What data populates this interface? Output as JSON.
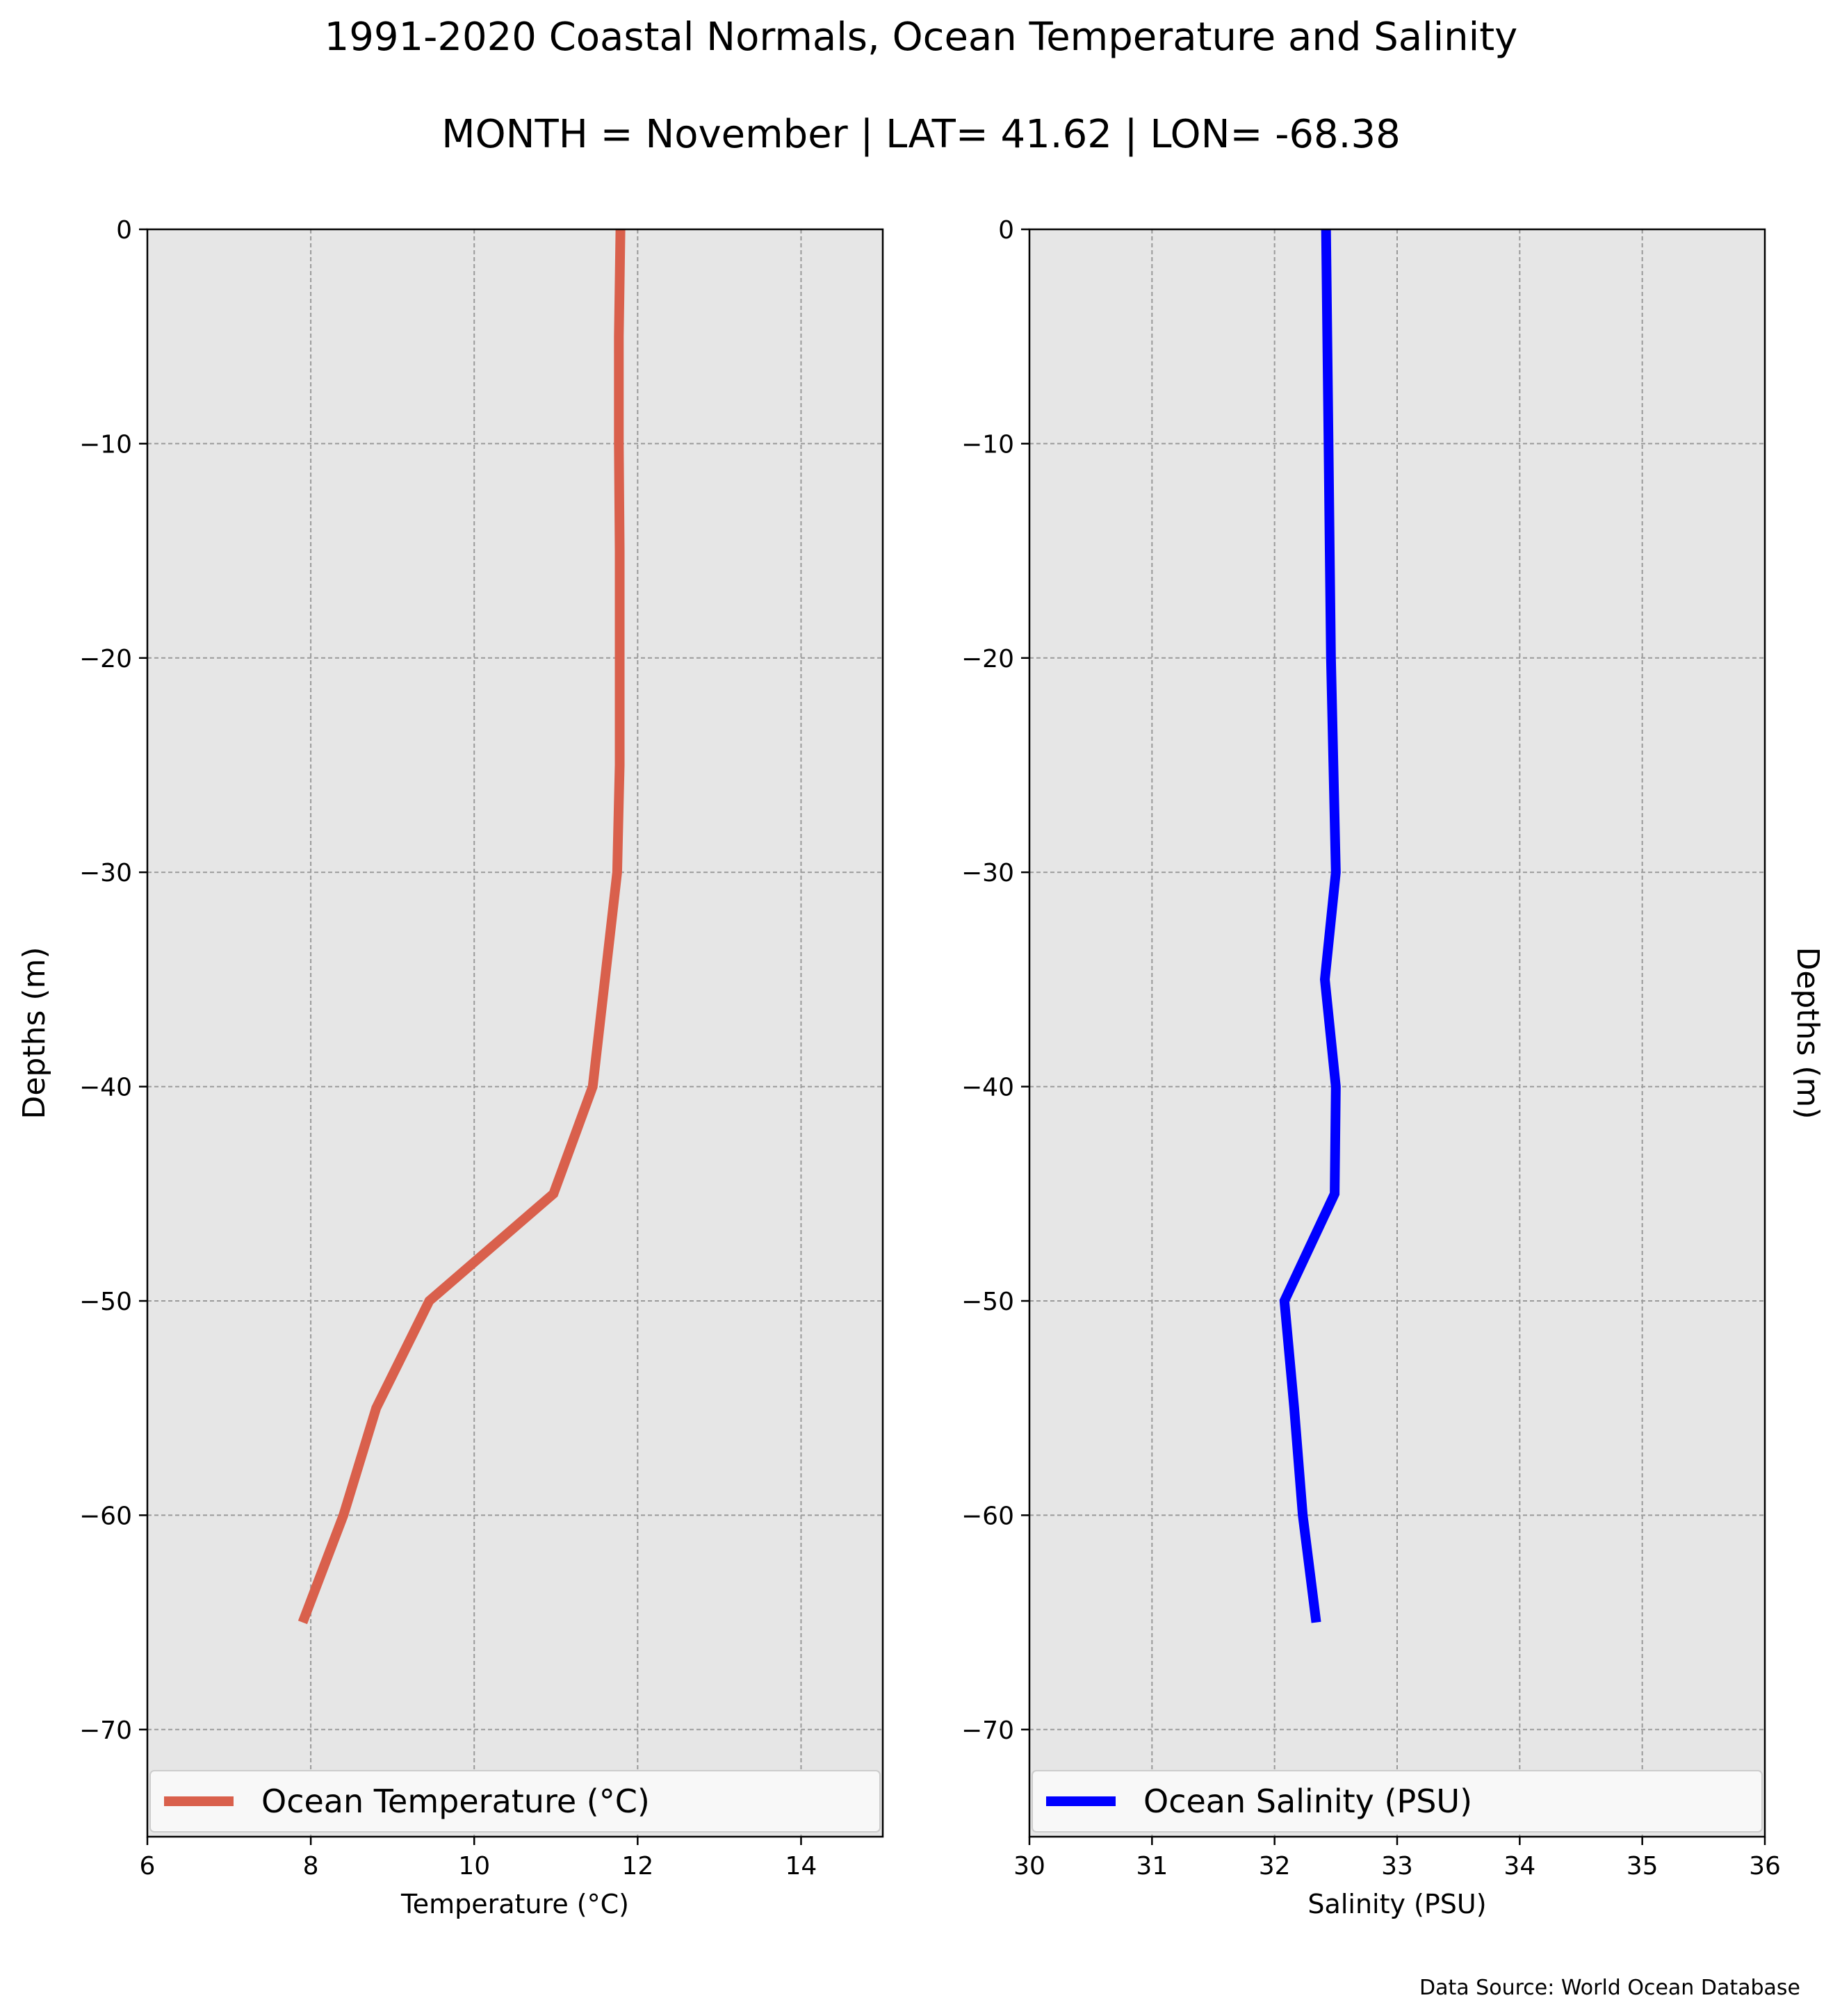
{
  "title": "1991-2020 Coastal Normals, Ocean Temperature and Salinity",
  "subtitle": "MONTH = November | LAT= 41.62 | LON= -68.38",
  "source": "Data Source: World Ocean Database",
  "chart_data": [
    {
      "type": "line",
      "xlabel": "Temperature ($^\\circ$C)",
      "xlabel_display": "Temperature (°C)",
      "ylabel": "Depths (m)",
      "xlim": [
        6,
        15
      ],
      "ylim": [
        -75,
        0
      ],
      "xticks": [
        6,
        8,
        10,
        12,
        14
      ],
      "yticks": [
        0,
        -10,
        -20,
        -30,
        -40,
        -50,
        -60,
        -70
      ],
      "grid": true,
      "legend": "bottom",
      "color": "#d9604c",
      "series": [
        {
          "name": "Ocean Temperature (°C)",
          "x": [
            11.79,
            11.77,
            11.77,
            11.78,
            11.78,
            11.78,
            11.75,
            11.6,
            11.45,
            10.97,
            9.45,
            8.8,
            8.4,
            7.9
          ],
          "y": [
            0,
            -5,
            -10,
            -15,
            -20,
            -25,
            -30,
            -35,
            -40,
            -45,
            -50,
            -55,
            -60,
            -65
          ]
        }
      ]
    },
    {
      "type": "line",
      "xlabel": "Salinity (PSU)",
      "ylabel": "Depths (m)",
      "xlim": [
        30,
        36
      ],
      "ylim": [
        -75,
        0
      ],
      "xticks": [
        30,
        31,
        32,
        33,
        34,
        35,
        36
      ],
      "yticks": [
        0,
        -10,
        -20,
        -30,
        -40,
        -50,
        -60,
        -70
      ],
      "grid": true,
      "legend": "bottom",
      "color": "#0000ff",
      "series": [
        {
          "name": "Ocean Salinity (PSU)",
          "x": [
            32.42,
            32.43,
            32.44,
            32.45,
            32.46,
            32.48,
            32.5,
            32.41,
            32.5,
            32.49,
            32.08,
            32.16,
            32.23,
            32.34
          ],
          "y": [
            0,
            -5,
            -10,
            -15,
            -20,
            -25,
            -30,
            -35,
            -40,
            -45,
            -50,
            -55,
            -60,
            -65
          ]
        }
      ]
    }
  ]
}
